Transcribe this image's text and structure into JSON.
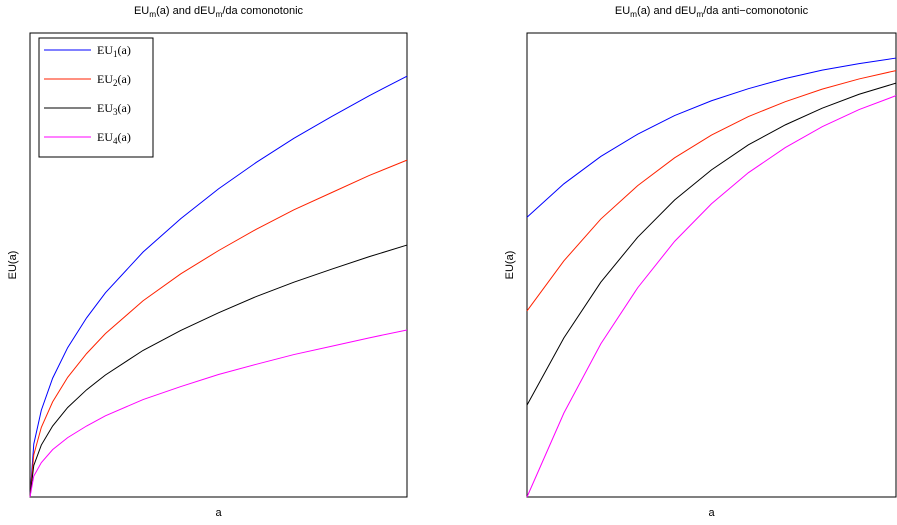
{
  "chart_data": [
    {
      "type": "line",
      "title": "EUm(a) and dEUm/da comonotonic",
      "xlabel": "a",
      "ylabel": "EU(a)",
      "xlim": [
        0,
        1
      ],
      "ylim": [
        0,
        1
      ],
      "legend": "upper left",
      "x": [
        0,
        0.01,
        0.03,
        0.06,
        0.1,
        0.15,
        0.2,
        0.3,
        0.4,
        0.5,
        0.6,
        0.7,
        0.8,
        0.9,
        1
      ],
      "series": [
        {
          "name": "EU1(a)",
          "color": "#0000ff",
          "values": [
            0,
            0.114,
            0.187,
            0.256,
            0.322,
            0.386,
            0.44,
            0.528,
            0.6,
            0.664,
            0.721,
            0.773,
            0.82,
            0.865,
            0.907
          ]
        },
        {
          "name": "EU2(a)",
          "color": "#ff2200",
          "values": [
            0,
            0.091,
            0.15,
            0.205,
            0.258,
            0.309,
            0.352,
            0.423,
            0.481,
            0.531,
            0.577,
            0.619,
            0.656,
            0.693,
            0.726
          ]
        },
        {
          "name": "EU3(a)",
          "color": "#000000",
          "values": [
            0,
            0.068,
            0.112,
            0.153,
            0.193,
            0.231,
            0.263,
            0.316,
            0.359,
            0.397,
            0.432,
            0.463,
            0.491,
            0.518,
            0.543
          ]
        },
        {
          "name": "EU4(a)",
          "color": "#ff00ff",
          "values": [
            0,
            0.045,
            0.074,
            0.102,
            0.128,
            0.153,
            0.175,
            0.21,
            0.238,
            0.264,
            0.286,
            0.307,
            0.325,
            0.343,
            0.36
          ]
        }
      ]
    },
    {
      "type": "line",
      "title": "EUm(a) and dEUm/da anti−comonotonic",
      "xlabel": "a",
      "ylabel": "EU(a)",
      "xlim": [
        0,
        1
      ],
      "ylim": [
        0,
        1
      ],
      "x": [
        0,
        0.1,
        0.2,
        0.3,
        0.4,
        0.5,
        0.6,
        0.7,
        0.8,
        0.9,
        1
      ],
      "series": [
        {
          "color": "#0000ff",
          "values": [
            0.603,
            0.675,
            0.734,
            0.782,
            0.822,
            0.854,
            0.88,
            0.902,
            0.92,
            0.934,
            0.946
          ]
        },
        {
          "color": "#ff2200",
          "values": [
            0.401,
            0.509,
            0.599,
            0.671,
            0.731,
            0.78,
            0.82,
            0.852,
            0.879,
            0.901,
            0.919
          ]
        },
        {
          "color": "#000000",
          "values": [
            0.198,
            0.343,
            0.463,
            0.56,
            0.64,
            0.705,
            0.759,
            0.802,
            0.838,
            0.868,
            0.892
          ]
        },
        {
          "color": "#ff00ff",
          "values": [
            0,
            0.181,
            0.33,
            0.451,
            0.551,
            0.632,
            0.699,
            0.753,
            0.798,
            0.835,
            0.865
          ]
        }
      ]
    }
  ]
}
